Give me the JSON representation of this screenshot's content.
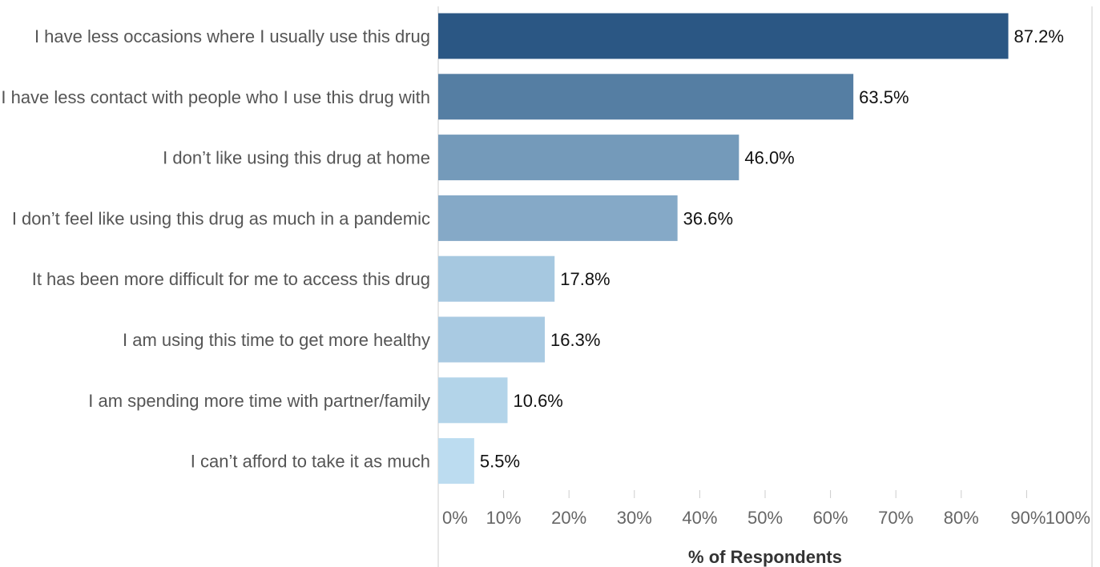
{
  "chart_data": {
    "type": "bar",
    "orientation": "horizontal",
    "title": "",
    "xlabel": "% of Respondents",
    "ylabel": "",
    "xlim": [
      0,
      100
    ],
    "grid": false,
    "legend": "none",
    "categories": [
      "I have less occasions where I usually use this drug",
      "I have less contact with people who I use this drug with",
      "I don’t like using this drug at home",
      "I don’t feel like using this drug as much in a pandemic",
      "It has been more difficult for me to access this drug",
      "I am using this time to get more healthy",
      "I am spending more time with partner/family",
      "I can’t afford to take it as much"
    ],
    "values": [
      87.2,
      63.5,
      46.0,
      36.6,
      17.8,
      16.3,
      10.6,
      5.5
    ],
    "data_labels": [
      "87.2%",
      "63.5%",
      "46.0%",
      "36.6%",
      "17.8%",
      "16.3%",
      "10.6%",
      "5.5%"
    ],
    "x_ticks": [
      0,
      10,
      20,
      30,
      40,
      50,
      60,
      70,
      80,
      90,
      100
    ],
    "x_tick_labels": [
      "0%",
      "10%",
      "20%",
      "30%",
      "40%",
      "50%",
      "60%",
      "70%",
      "80%",
      "90%",
      "100%"
    ],
    "colors": {
      "scale_low": "#bcdcf0",
      "scale_high": "#2b5784",
      "axis": "#cccccc"
    }
  }
}
